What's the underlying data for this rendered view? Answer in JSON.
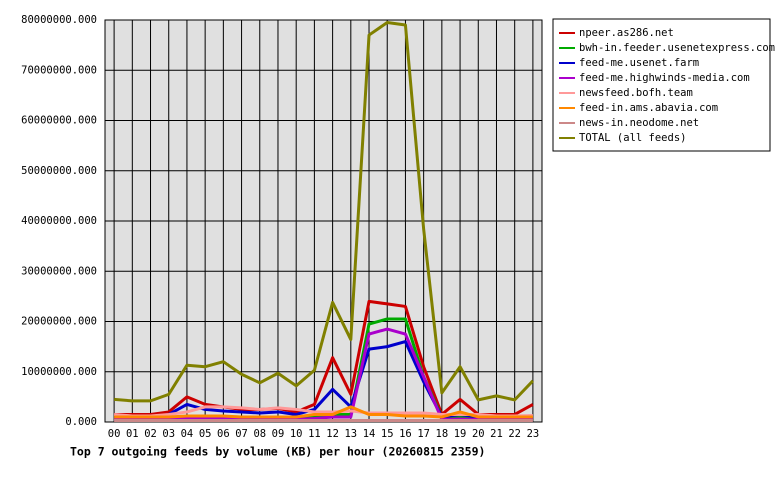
{
  "chart_data": {
    "type": "line",
    "title": "Top 7 outgoing feeds by volume (KB) per hour (20260815 2359)",
    "categories": [
      "00",
      "01",
      "02",
      "03",
      "04",
      "05",
      "06",
      "07",
      "08",
      "09",
      "10",
      "11",
      "12",
      "13",
      "14",
      "15",
      "16",
      "17",
      "18",
      "19",
      "20",
      "21",
      "22",
      "23"
    ],
    "ylim": [
      0,
      80000000
    ],
    "yticks": [
      {
        "value": 0,
        "label": "0.000"
      },
      {
        "value": 10000000,
        "label": "10000000.000"
      },
      {
        "value": 20000000,
        "label": "20000000.000"
      },
      {
        "value": 30000000,
        "label": "30000000.000"
      },
      {
        "value": 40000000,
        "label": "40000000.000"
      },
      {
        "value": 50000000,
        "label": "50000000.000"
      },
      {
        "value": 60000000,
        "label": "60000000.000"
      },
      {
        "value": 70000000,
        "label": "70000000.000"
      },
      {
        "value": 80000000,
        "label": "80000000.000"
      }
    ],
    "grid": true,
    "legend": "right",
    "series": [
      {
        "name": "npeer.as286.net",
        "color": "#cc0000",
        "values": [
          1500000,
          1500000,
          1500000,
          2000000,
          5000000,
          3500000,
          3000000,
          2500000,
          2500000,
          2700000,
          2000000,
          3500000,
          12800000,
          5500000,
          24000000,
          23500000,
          23000000,
          11000000,
          1500000,
          4500000,
          1500000,
          1500000,
          1500000,
          3500000
        ]
      },
      {
        "name": "bwh-in.feeder.usenetexpress.com",
        "color": "#00aa00",
        "values": [
          500000,
          500000,
          500000,
          500000,
          800000,
          1000000,
          800000,
          700000,
          600000,
          700000,
          600000,
          1000000,
          1500000,
          1500000,
          19500000,
          20500000,
          20500000,
          9000000,
          1000000,
          1000000,
          500000,
          500000,
          500000,
          800000
        ]
      },
      {
        "name": "feed-me.usenet.farm",
        "color": "#0000cc",
        "values": [
          1000000,
          1000000,
          1000000,
          1500000,
          3500000,
          2500000,
          2200000,
          2000000,
          1800000,
          2000000,
          1500000,
          2500000,
          6500000,
          3000000,
          14500000,
          15000000,
          16000000,
          8000000,
          1000000,
          1500000,
          1000000,
          1000000,
          1000000,
          1200000
        ]
      },
      {
        "name": "feed-me.highwinds-media.com",
        "color": "#aa00cc",
        "values": [
          500000,
          500000,
          500000,
          500000,
          700000,
          700000,
          600000,
          600000,
          500000,
          600000,
          500000,
          700000,
          1000000,
          1000000,
          17500000,
          18500000,
          17500000,
          9000000,
          500000,
          600000,
          500000,
          500000,
          500000,
          500000
        ]
      },
      {
        "name": "newsfeed.bofh.team",
        "color": "#ff9999",
        "values": [
          1500000,
          1200000,
          1200000,
          1500000,
          2000000,
          3000000,
          3000000,
          2800000,
          2500000,
          2800000,
          2500000,
          2000000,
          2000000,
          2200000,
          1800000,
          1800000,
          1800000,
          1800000,
          1500000,
          1500000,
          1500000,
          1200000,
          1200000,
          1300000
        ]
      },
      {
        "name": "feed-in.ams.abavia.com",
        "color": "#ff8800",
        "values": [
          1000000,
          1000000,
          1000000,
          1000000,
          1200000,
          1200000,
          1200000,
          1000000,
          1000000,
          1000000,
          1000000,
          1500000,
          1500000,
          3000000,
          1500000,
          1500000,
          1200000,
          1200000,
          1000000,
          2000000,
          1000000,
          1000000,
          1000000,
          1000000
        ]
      },
      {
        "name": "news-in.neodome.net",
        "color": "#cc8888",
        "values": [
          300000,
          300000,
          300000,
          300000,
          300000,
          300000,
          300000,
          300000,
          300000,
          300000,
          300000,
          300000,
          300000,
          300000,
          300000,
          300000,
          300000,
          300000,
          300000,
          300000,
          300000,
          300000,
          300000,
          300000
        ]
      },
      {
        "name": "TOTAL (all feeds)",
        "color": "#808000",
        "values": [
          4500000,
          4200000,
          4200000,
          5500000,
          11300000,
          11000000,
          12000000,
          9500000,
          7800000,
          9700000,
          7200000,
          10300000,
          23800000,
          16400000,
          77000000,
          79500000,
          79000000,
          38400000,
          5800000,
          11000000,
          4400000,
          5200000,
          4400000,
          8200000
        ]
      }
    ]
  }
}
